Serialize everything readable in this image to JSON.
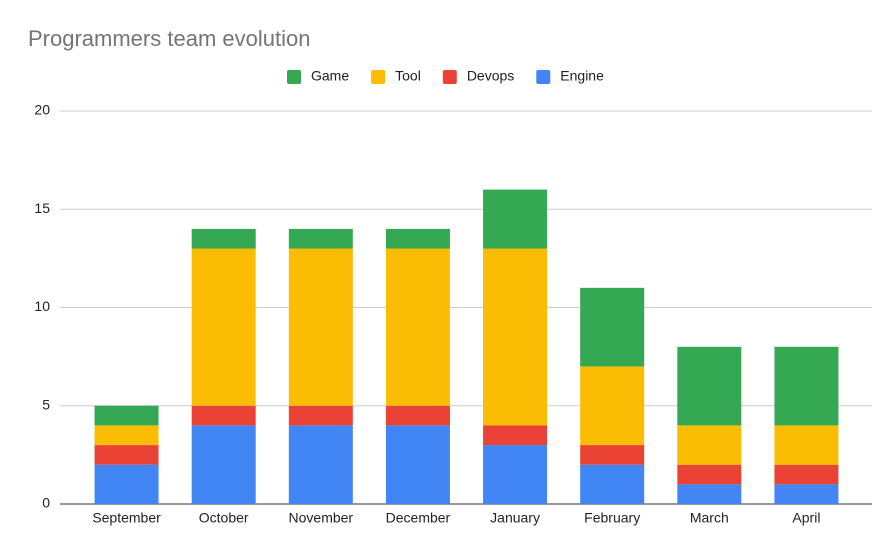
{
  "chart_data": {
    "type": "stacked_bar",
    "title": "Programmers team evolution",
    "categories": [
      "September",
      "October",
      "November",
      "December",
      "January",
      "February",
      "March",
      "April"
    ],
    "series": [
      {
        "name": "Game",
        "color": "#34a853",
        "values": [
          1,
          1,
          1,
          1,
          3,
          4,
          4,
          4
        ]
      },
      {
        "name": "Tool",
        "color": "#fbbc04",
        "values": [
          1,
          8,
          8,
          8,
          9,
          4,
          2,
          2
        ]
      },
      {
        "name": "Devops",
        "color": "#ea4335",
        "values": [
          1,
          1,
          1,
          1,
          1,
          1,
          1,
          1
        ]
      },
      {
        "name": "Engine",
        "color": "#4285f4",
        "values": [
          2,
          4,
          4,
          4,
          3,
          2,
          1,
          1
        ]
      }
    ],
    "ylim": [
      0,
      20
    ],
    "yticks": [
      0,
      5,
      10,
      15,
      20
    ],
    "grid": true,
    "legend": "top"
  }
}
